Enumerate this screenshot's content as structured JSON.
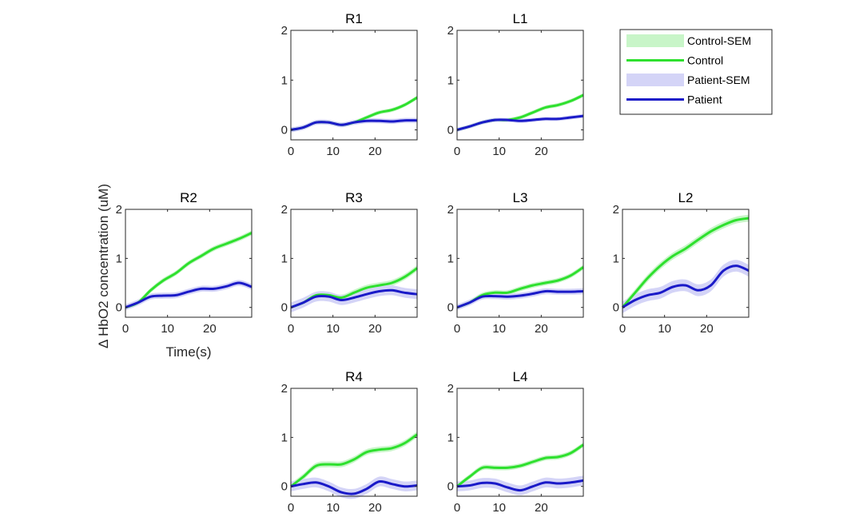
{
  "figure": {
    "ylabel": "Δ HbO2 concentration (uM)",
    "xlabel": "Time(s)"
  },
  "colors": {
    "control": "#2ee02e",
    "control_sem": "#c8f5c8",
    "patient": "#1a1ac8",
    "patient_sem": "#d4d4f7"
  },
  "legend": {
    "position": "top-right",
    "entries": [
      {
        "label": "Control-SEM",
        "kind": "band",
        "color_key": "control_sem"
      },
      {
        "label": "Control",
        "kind": "line",
        "color_key": "control"
      },
      {
        "label": "Patient-SEM",
        "kind": "band",
        "color_key": "patient_sem"
      },
      {
        "label": "Patient",
        "kind": "line",
        "color_key": "patient"
      }
    ]
  },
  "chart_data": [
    {
      "type": "line",
      "title": "R1",
      "xlim": [
        0,
        30
      ],
      "ylim": [
        -0.2,
        2
      ],
      "xticks": [
        "0",
        "10",
        "20"
      ],
      "yticks": [
        "0",
        "1",
        "2"
      ],
      "x": [
        0,
        3,
        6,
        9,
        12,
        15,
        18,
        21,
        24,
        27,
        30
      ],
      "series": [
        {
          "name": "Control",
          "values": [
            0,
            0.05,
            0.15,
            0.15,
            0.1,
            0.15,
            0.25,
            0.35,
            0.4,
            0.5,
            0.65
          ],
          "sem": 0.04
        },
        {
          "name": "Patient",
          "values": [
            0,
            0.05,
            0.15,
            0.15,
            0.1,
            0.15,
            0.18,
            0.18,
            0.17,
            0.19,
            0.19
          ],
          "sem": 0.05
        }
      ]
    },
    {
      "type": "line",
      "title": "L1",
      "xlim": [
        0,
        30
      ],
      "ylim": [
        -0.2,
        2
      ],
      "xticks": [
        "0",
        "10",
        "20"
      ],
      "yticks": [
        "0",
        "1",
        "2"
      ],
      "x": [
        0,
        3,
        6,
        9,
        12,
        15,
        18,
        21,
        24,
        27,
        30
      ],
      "series": [
        {
          "name": "Control",
          "values": [
            0,
            0.07,
            0.15,
            0.2,
            0.2,
            0.25,
            0.35,
            0.45,
            0.5,
            0.58,
            0.7
          ],
          "sem": 0.04
        },
        {
          "name": "Patient",
          "values": [
            0,
            0.07,
            0.15,
            0.2,
            0.2,
            0.18,
            0.2,
            0.22,
            0.22,
            0.25,
            0.28
          ],
          "sem": 0.04
        }
      ]
    },
    {
      "type": "line",
      "title": "R2",
      "xlim": [
        0,
        30
      ],
      "ylim": [
        -0.2,
        2
      ],
      "xticks": [
        "0",
        "10",
        "20"
      ],
      "yticks": [
        "0",
        "1",
        "2"
      ],
      "x": [
        0,
        3,
        6,
        9,
        12,
        15,
        18,
        21,
        24,
        27,
        30
      ],
      "series": [
        {
          "name": "Control",
          "values": [
            0,
            0.1,
            0.35,
            0.55,
            0.7,
            0.9,
            1.05,
            1.2,
            1.3,
            1.4,
            1.52
          ],
          "sem": 0.05
        },
        {
          "name": "Patient",
          "values": [
            0,
            0.1,
            0.22,
            0.24,
            0.25,
            0.32,
            0.38,
            0.38,
            0.43,
            0.5,
            0.42
          ],
          "sem": 0.06
        }
      ]
    },
    {
      "type": "line",
      "title": "R3",
      "xlim": [
        0,
        30
      ],
      "ylim": [
        -0.2,
        2
      ],
      "xticks": [
        "0",
        "10",
        "20"
      ],
      "yticks": [
        "0",
        "1",
        "2"
      ],
      "x": [
        0,
        3,
        6,
        9,
        12,
        15,
        18,
        21,
        24,
        27,
        30
      ],
      "series": [
        {
          "name": "Control",
          "values": [
            0,
            0.1,
            0.25,
            0.25,
            0.2,
            0.3,
            0.4,
            0.45,
            0.5,
            0.62,
            0.8
          ],
          "sem": 0.06
        },
        {
          "name": "Patient",
          "values": [
            0,
            0.1,
            0.22,
            0.22,
            0.15,
            0.2,
            0.27,
            0.33,
            0.35,
            0.3,
            0.27
          ],
          "sem": 0.1
        }
      ]
    },
    {
      "type": "line",
      "title": "L3",
      "xlim": [
        0,
        30
      ],
      "ylim": [
        -0.2,
        2
      ],
      "xticks": [
        "0",
        "10",
        "20"
      ],
      "yticks": [
        "0",
        "1",
        "2"
      ],
      "x": [
        0,
        3,
        6,
        9,
        12,
        15,
        18,
        21,
        24,
        27,
        30
      ],
      "series": [
        {
          "name": "Control",
          "values": [
            0,
            0.1,
            0.25,
            0.3,
            0.3,
            0.38,
            0.45,
            0.5,
            0.55,
            0.65,
            0.82
          ],
          "sem": 0.05
        },
        {
          "name": "Patient",
          "values": [
            0,
            0.1,
            0.22,
            0.23,
            0.22,
            0.24,
            0.28,
            0.33,
            0.32,
            0.32,
            0.33
          ],
          "sem": 0.06
        }
      ]
    },
    {
      "type": "line",
      "title": "L2",
      "xlim": [
        0,
        30
      ],
      "ylim": [
        -0.2,
        2
      ],
      "xticks": [
        "0",
        "10",
        "20"
      ],
      "yticks": [
        "0",
        "1",
        "2"
      ],
      "x": [
        0,
        3,
        6,
        9,
        12,
        15,
        18,
        21,
        24,
        27,
        30
      ],
      "series": [
        {
          "name": "Control",
          "values": [
            0,
            0.3,
            0.6,
            0.85,
            1.05,
            1.2,
            1.38,
            1.55,
            1.68,
            1.78,
            1.82
          ],
          "sem": 0.07
        },
        {
          "name": "Patient",
          "values": [
            0,
            0.15,
            0.25,
            0.3,
            0.42,
            0.45,
            0.35,
            0.45,
            0.75,
            0.85,
            0.75
          ],
          "sem": 0.12
        }
      ]
    },
    {
      "type": "line",
      "title": "R4",
      "xlim": [
        0,
        30
      ],
      "ylim": [
        -0.2,
        2
      ],
      "xticks": [
        "0",
        "10",
        "20"
      ],
      "yticks": [
        "0",
        "1",
        "2"
      ],
      "x": [
        0,
        3,
        6,
        9,
        12,
        15,
        18,
        21,
        24,
        27,
        30
      ],
      "series": [
        {
          "name": "Control",
          "values": [
            0,
            0.2,
            0.42,
            0.45,
            0.45,
            0.55,
            0.7,
            0.75,
            0.78,
            0.88,
            1.06
          ],
          "sem": 0.06
        },
        {
          "name": "Patient",
          "values": [
            0,
            0.05,
            0.08,
            0.0,
            -0.12,
            -0.15,
            -0.05,
            0.1,
            0.05,
            0.0,
            0.02
          ],
          "sem": 0.1
        }
      ]
    },
    {
      "type": "line",
      "title": "L4",
      "xlim": [
        0,
        30
      ],
      "ylim": [
        -0.2,
        2
      ],
      "xticks": [
        "0",
        "10",
        "20"
      ],
      "yticks": [
        "0",
        "1",
        "2"
      ],
      "x": [
        0,
        3,
        6,
        9,
        12,
        15,
        18,
        21,
        24,
        27,
        30
      ],
      "series": [
        {
          "name": "Control",
          "values": [
            0,
            0.2,
            0.38,
            0.38,
            0.38,
            0.42,
            0.5,
            0.58,
            0.6,
            0.68,
            0.85
          ],
          "sem": 0.05
        },
        {
          "name": "Patient",
          "values": [
            0,
            0.02,
            0.07,
            0.06,
            -0.02,
            -0.08,
            0.0,
            0.08,
            0.06,
            0.08,
            0.12
          ],
          "sem": 0.1
        }
      ]
    }
  ]
}
